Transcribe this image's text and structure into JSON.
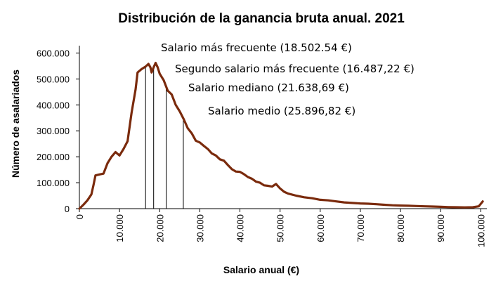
{
  "chart_data": {
    "type": "line",
    "title": "Distribución de la ganancia bruta anual. 2021",
    "xlabel": "Salario anual (€)",
    "ylabel": "Número de asalariados",
    "xlim": [
      0,
      101000
    ],
    "ylim": [
      0,
      650000
    ],
    "grid": false,
    "line_color": "#7a2a0c",
    "x_ticks": [
      {
        "value": 0,
        "label": "0"
      },
      {
        "value": 10000,
        "label": "10.000"
      },
      {
        "value": 20000,
        "label": "20.000"
      },
      {
        "value": 30000,
        "label": "30.000"
      },
      {
        "value": 40000,
        "label": "40.000"
      },
      {
        "value": 50000,
        "label": "50.000"
      },
      {
        "value": 60000,
        "label": "60.000"
      },
      {
        "value": 70000,
        "label": "70.000"
      },
      {
        "value": 80000,
        "label": "80.000"
      },
      {
        "value": 90000,
        "label": "90.000"
      },
      {
        "value": 100000,
        "label": "100.000"
      }
    ],
    "y_ticks": [
      {
        "value": 0,
        "label": "0"
      },
      {
        "value": 100000,
        "label": "100.000"
      },
      {
        "value": 200000,
        "label": "200.000"
      },
      {
        "value": 300000,
        "label": "300.000"
      },
      {
        "value": 400000,
        "label": "400.000"
      },
      {
        "value": 500000,
        "label": "500.000"
      },
      {
        "value": 600000,
        "label": "600.000"
      }
    ],
    "series": [
      {
        "points": [
          [
            0,
            0
          ],
          [
            1000,
            15000
          ],
          [
            2000,
            32000
          ],
          [
            3000,
            55000
          ],
          [
            3500,
            90000
          ],
          [
            4000,
            128000
          ],
          [
            5000,
            132000
          ],
          [
            6000,
            135000
          ],
          [
            7000,
            175000
          ],
          [
            8000,
            200000
          ],
          [
            9000,
            218000
          ],
          [
            10000,
            205000
          ],
          [
            11000,
            230000
          ],
          [
            12000,
            260000
          ],
          [
            13000,
            370000
          ],
          [
            14000,
            460000
          ],
          [
            14500,
            525000
          ],
          [
            15500,
            538000
          ],
          [
            16500,
            548000
          ],
          [
            17200,
            558000
          ],
          [
            17700,
            545000
          ],
          [
            18000,
            525000
          ],
          [
            18500,
            545000
          ],
          [
            19000,
            562000
          ],
          [
            19500,
            545000
          ],
          [
            20000,
            520000
          ],
          [
            21000,
            495000
          ],
          [
            22000,
            455000
          ],
          [
            23000,
            440000
          ],
          [
            24000,
            400000
          ],
          [
            25000,
            375000
          ],
          [
            26000,
            345000
          ],
          [
            27000,
            310000
          ],
          [
            28000,
            290000
          ],
          [
            29000,
            262000
          ],
          [
            30000,
            255000
          ],
          [
            31000,
            242000
          ],
          [
            32000,
            230000
          ],
          [
            33000,
            213000
          ],
          [
            34000,
            205000
          ],
          [
            35000,
            190000
          ],
          [
            36000,
            185000
          ],
          [
            37000,
            168000
          ],
          [
            38000,
            152000
          ],
          [
            39000,
            143000
          ],
          [
            40000,
            142000
          ],
          [
            41000,
            133000
          ],
          [
            42000,
            122000
          ],
          [
            43000,
            115000
          ],
          [
            44000,
            104000
          ],
          [
            45000,
            100000
          ],
          [
            46000,
            90000
          ],
          [
            47000,
            88000
          ],
          [
            48000,
            85000
          ],
          [
            49000,
            95000
          ],
          [
            50000,
            78000
          ],
          [
            51000,
            65000
          ],
          [
            52000,
            58000
          ],
          [
            54000,
            50000
          ],
          [
            56000,
            44000
          ],
          [
            58000,
            40000
          ],
          [
            60000,
            34000
          ],
          [
            62000,
            32000
          ],
          [
            64000,
            28000
          ],
          [
            66000,
            24000
          ],
          [
            68000,
            22000
          ],
          [
            70000,
            20000
          ],
          [
            72000,
            19000
          ],
          [
            74000,
            17000
          ],
          [
            76000,
            15000
          ],
          [
            78000,
            13000
          ],
          [
            80000,
            12000
          ],
          [
            82000,
            11000
          ],
          [
            84000,
            10000
          ],
          [
            86000,
            9000
          ],
          [
            88000,
            8000
          ],
          [
            90000,
            7000
          ],
          [
            92000,
            6000
          ],
          [
            94000,
            5500
          ],
          [
            96000,
            5000
          ],
          [
            98000,
            5500
          ],
          [
            99500,
            9000
          ],
          [
            100500,
            28000
          ]
        ]
      }
    ],
    "annotations": [
      {
        "text": "Salario más frecuente (18.502.54 €)",
        "x": 18502.54
      },
      {
        "text": "Segundo salario más frecuente (16.487,22 €)",
        "x": 16487.22
      },
      {
        "text": "Salario mediano (21.638,69 €)",
        "x": 21638.69
      },
      {
        "text": "Salario medio (25.896,82 €)",
        "x": 25896.82
      }
    ]
  }
}
